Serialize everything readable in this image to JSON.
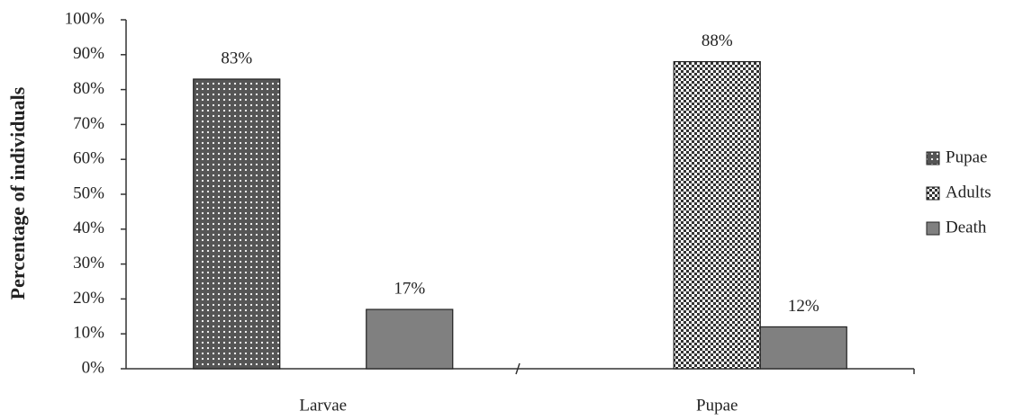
{
  "chart_data": {
    "type": "bar",
    "y_label": "Percentage of individuals",
    "categories": [
      "Larvae",
      "Pupae"
    ],
    "series": [
      {
        "name": "Pupae",
        "color": "#555555",
        "pattern": "dots",
        "values": [
          83,
          null
        ],
        "value_labels": [
          "83%",
          null
        ]
      },
      {
        "name": "Adults",
        "color": "#333333",
        "pattern": "checker",
        "values": [
          null,
          88
        ],
        "value_labels": [
          null,
          "88%"
        ]
      },
      {
        "name": "Death",
        "color": "#808080",
        "pattern": "solid",
        "values": [
          17,
          12
        ],
        "value_labels": [
          "17%",
          "12%"
        ]
      }
    ],
    "ylim": [
      0,
      100
    ],
    "yticks": [
      {
        "value": 0,
        "label": "0%"
      },
      {
        "value": 10,
        "label": "10%"
      },
      {
        "value": 20,
        "label": "20%"
      },
      {
        "value": 30,
        "label": "30%"
      },
      {
        "value": 40,
        "label": "40%"
      },
      {
        "value": 50,
        "label": "50%"
      },
      {
        "value": 60,
        "label": "60%"
      },
      {
        "value": 70,
        "label": "70%"
      },
      {
        "value": 80,
        "label": "80%"
      },
      {
        "value": 90,
        "label": "90%"
      },
      {
        "value": 100,
        "label": "100%"
      }
    ],
    "legend": "right"
  }
}
